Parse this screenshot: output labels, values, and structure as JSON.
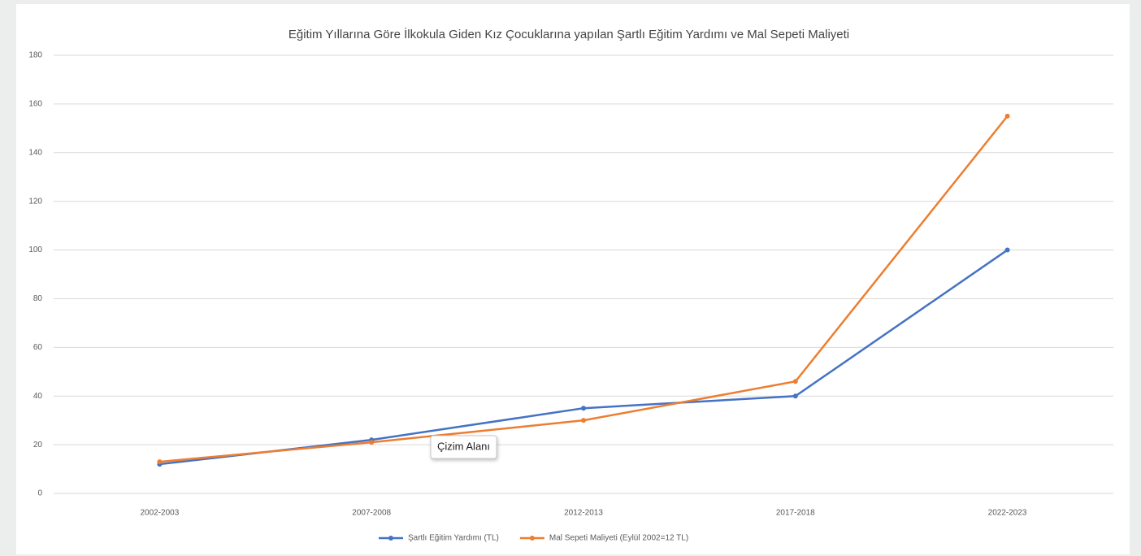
{
  "chart_data": {
    "type": "line",
    "title": "Eğitim Yıllarına Göre İlkokula Giden Kız Çocuklarına yapılan Şartlı Eğitim Yardımı ve Mal Sepeti Maliyeti",
    "categories": [
      "2002-2003",
      "2007-2008",
      "2012-2013",
      "2017-2018",
      "2022-2023"
    ],
    "series": [
      {
        "name": "Şartlı Eğitim Yardımı (TL)",
        "color": "#4472c4",
        "values": [
          12,
          22,
          35,
          40,
          100
        ]
      },
      {
        "name": "Mal Sepeti Maliyeti (Eylül 2002=12 TL)",
        "color": "#ed7d31",
        "values": [
          13,
          21,
          30,
          46,
          155
        ]
      }
    ],
    "ylim": [
      0,
      180
    ],
    "yticks": [
      0,
      20,
      40,
      60,
      80,
      100,
      120,
      140,
      160,
      180
    ],
    "grid": true,
    "legend": "bottom",
    "tooltip": "Çizim Alanı"
  }
}
